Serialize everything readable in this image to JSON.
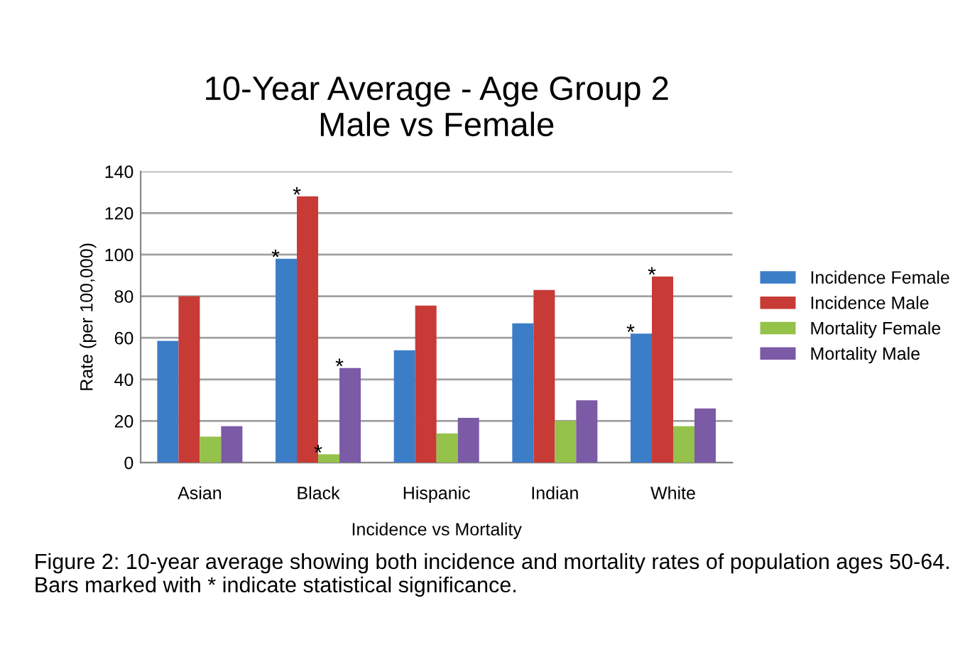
{
  "chart_data": {
    "type": "bar",
    "title": "10-Year Average - Age Group 2\nMale vs Female",
    "xlabel": "Incidence vs Mortality",
    "ylabel": "Rate (per 100,000)",
    "categories": [
      "Asian",
      "Black",
      "Hispanic",
      "Indian",
      "White"
    ],
    "series": [
      {
        "name": "Incidence Female",
        "color": "#3c7dc8",
        "values": [
          58.5,
          98,
          54,
          67,
          62
        ],
        "value_labels": [
          null,
          "*",
          null,
          null,
          "*"
        ]
      },
      {
        "name": "Incidence Male",
        "color": "#c83a36",
        "values": [
          80,
          128,
          75.5,
          83,
          89.5
        ],
        "value_labels": [
          null,
          "*",
          null,
          null,
          "*"
        ]
      },
      {
        "name": "Mortality Female",
        "color": "#94c24a",
        "values": [
          12.5,
          4,
          14,
          20,
          17.5
        ],
        "value_labels": [
          null,
          "*",
          null,
          null,
          null
        ]
      },
      {
        "name": "Mortality Male",
        "color": "#7b5aa6",
        "values": [
          17.5,
          45.5,
          21.5,
          30,
          26
        ],
        "value_labels": [
          null,
          "*",
          null,
          null,
          null
        ]
      }
    ],
    "ylim": [
      0,
      140
    ],
    "yticks": [
      0,
      20,
      40,
      60,
      80,
      100,
      120,
      140
    ],
    "grid": "y",
    "legend": "right",
    "annotations": [
      "Figure 2: 10-year average showing both incidence and mortality rates of population ages 50-64. Bars marked with * indicate statistical significance."
    ]
  }
}
